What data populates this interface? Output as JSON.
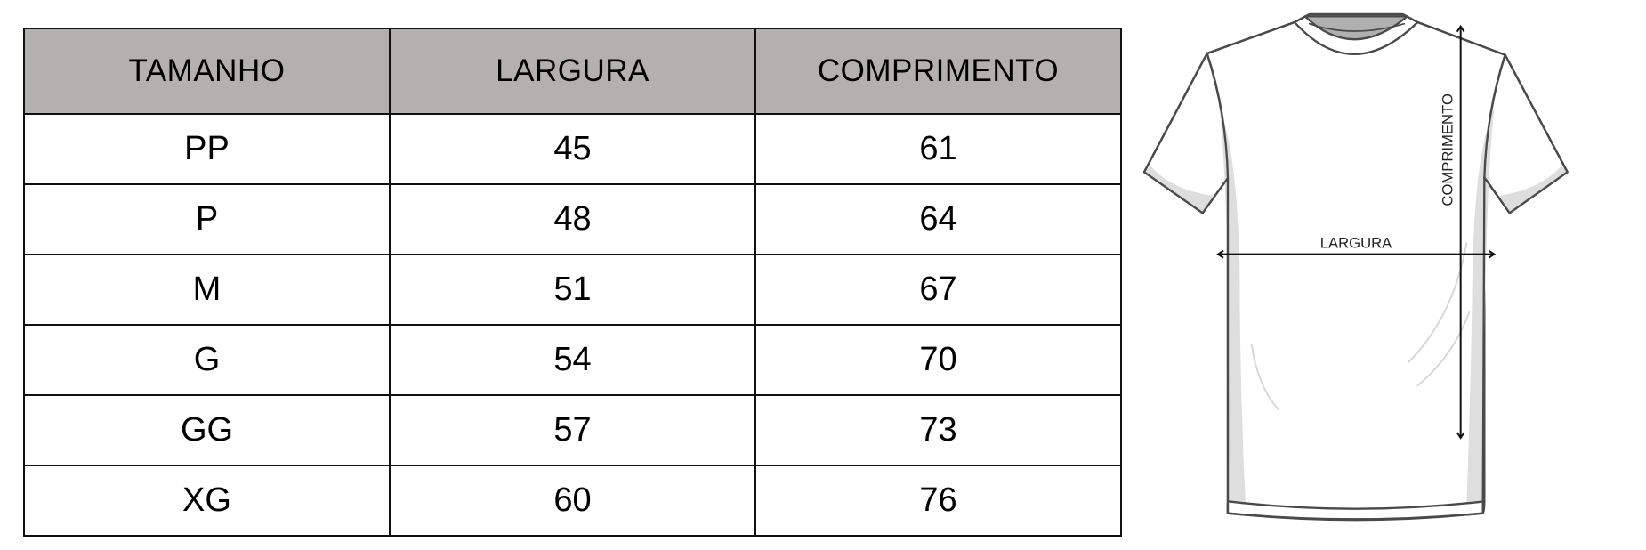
{
  "table": {
    "headers": [
      "TAMANHO",
      "LARGURA",
      "COMPRIMENTO"
    ],
    "rows": [
      [
        "PP",
        "45",
        "61"
      ],
      [
        "P",
        "48",
        "64"
      ],
      [
        "M",
        "51",
        "67"
      ],
      [
        "G",
        "54",
        "70"
      ],
      [
        "GG",
        "57",
        "73"
      ],
      [
        "XG",
        "60",
        "76"
      ]
    ],
    "header_color": "#b2b1af"
  },
  "diagram": {
    "width_label": "LARGURA",
    "length_label": "COMPRIMENTO"
  }
}
